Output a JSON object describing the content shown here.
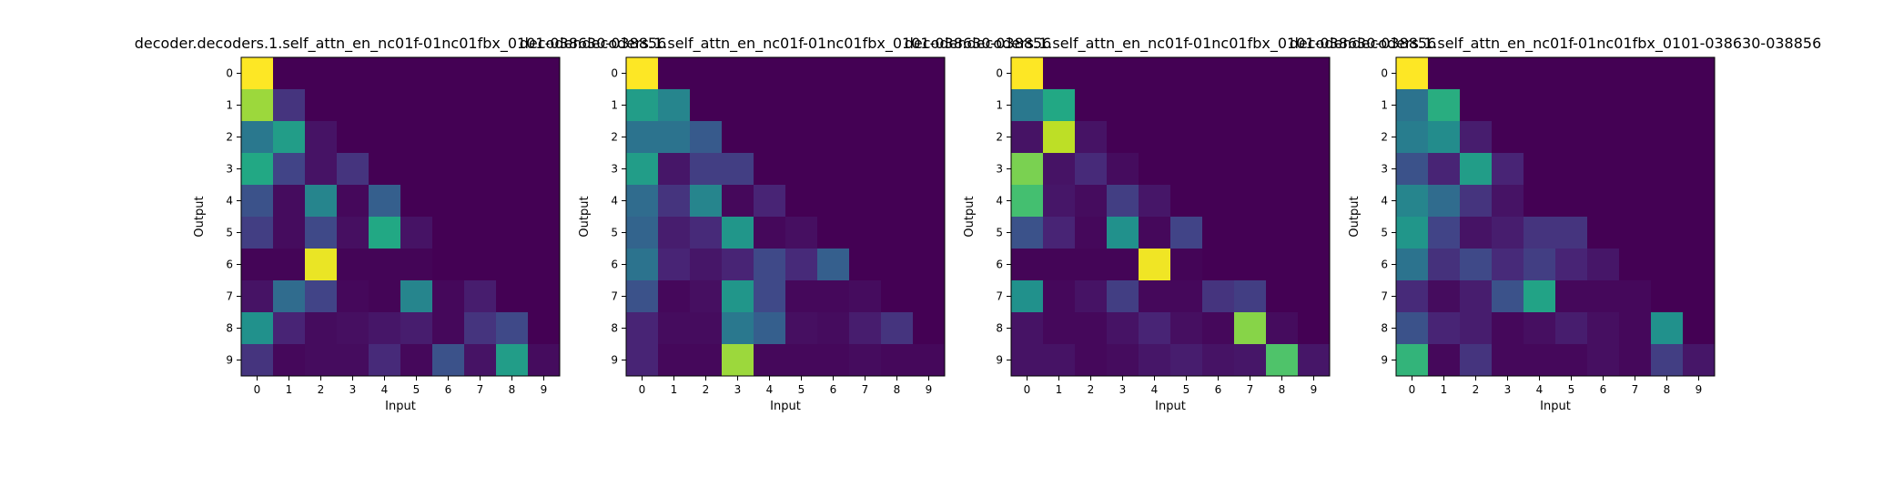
{
  "chart_data": [
    {
      "type": "heatmap",
      "title": "decoder.decoders.1.self_attn_en_nc01f-01nc01fbx_0101-038630-038856",
      "xlabel": "Input",
      "ylabel": "Output",
      "x_ticks": [
        "0",
        "1",
        "2",
        "3",
        "4",
        "5",
        "6",
        "7",
        "8",
        "9"
      ],
      "y_ticks": [
        "0",
        "1",
        "2",
        "3",
        "4",
        "5",
        "6",
        "7",
        "8",
        "9"
      ],
      "colormap": "viridis",
      "value_range": [
        0,
        1
      ],
      "values": [
        [
          1.0,
          0.0,
          0.0,
          0.0,
          0.0,
          0.0,
          0.0,
          0.0,
          0.0,
          0.0
        ],
        [
          0.85,
          0.15,
          0.0,
          0.0,
          0.0,
          0.0,
          0.0,
          0.0,
          0.0,
          0.0
        ],
        [
          0.4,
          0.55,
          0.05,
          0.0,
          0.0,
          0.0,
          0.0,
          0.0,
          0.0,
          0.0
        ],
        [
          0.6,
          0.2,
          0.05,
          0.15,
          0.0,
          0.0,
          0.0,
          0.0,
          0.0,
          0.0
        ],
        [
          0.25,
          0.03,
          0.45,
          0.02,
          0.3,
          0.0,
          0.0,
          0.0,
          0.0,
          0.0
        ],
        [
          0.18,
          0.03,
          0.22,
          0.04,
          0.6,
          0.05,
          0.0,
          0.0,
          0.0,
          0.0
        ],
        [
          0.01,
          0.01,
          0.97,
          0.01,
          0.01,
          0.01,
          0.0,
          0.0,
          0.0,
          0.0
        ],
        [
          0.05,
          0.35,
          0.2,
          0.02,
          0.01,
          0.45,
          0.02,
          0.08,
          0.0,
          0.0
        ],
        [
          0.5,
          0.1,
          0.03,
          0.04,
          0.06,
          0.08,
          0.02,
          0.15,
          0.22,
          0.0
        ],
        [
          0.15,
          0.02,
          0.03,
          0.03,
          0.12,
          0.02,
          0.25,
          0.05,
          0.55,
          0.03
        ]
      ]
    },
    {
      "type": "heatmap",
      "title": "decoder.decoders.1.self_attn_en_nc01f-01nc01fbx_0101-038630-038856",
      "xlabel": "Input",
      "ylabel": "Output",
      "x_ticks": [
        "0",
        "1",
        "2",
        "3",
        "4",
        "5",
        "6",
        "7",
        "8",
        "9"
      ],
      "y_ticks": [
        "0",
        "1",
        "2",
        "3",
        "4",
        "5",
        "6",
        "7",
        "8",
        "9"
      ],
      "colormap": "viridis",
      "value_range": [
        0,
        1
      ],
      "values": [
        [
          1.0,
          0.0,
          0.0,
          0.0,
          0.0,
          0.0,
          0.0,
          0.0,
          0.0,
          0.0
        ],
        [
          0.55,
          0.45,
          0.0,
          0.0,
          0.0,
          0.0,
          0.0,
          0.0,
          0.0,
          0.0
        ],
        [
          0.38,
          0.38,
          0.28,
          0.0,
          0.0,
          0.0,
          0.0,
          0.0,
          0.0,
          0.0
        ],
        [
          0.55,
          0.06,
          0.18,
          0.18,
          0.0,
          0.0,
          0.0,
          0.0,
          0.0,
          0.0
        ],
        [
          0.35,
          0.15,
          0.45,
          0.02,
          0.1,
          0.0,
          0.0,
          0.0,
          0.0,
          0.0
        ],
        [
          0.32,
          0.08,
          0.12,
          0.52,
          0.02,
          0.04,
          0.0,
          0.0,
          0.0,
          0.0
        ],
        [
          0.38,
          0.1,
          0.06,
          0.1,
          0.22,
          0.12,
          0.3,
          0.0,
          0.0,
          0.0
        ],
        [
          0.25,
          0.02,
          0.04,
          0.52,
          0.22,
          0.02,
          0.02,
          0.03,
          0.0,
          0.0
        ],
        [
          0.1,
          0.03,
          0.03,
          0.4,
          0.3,
          0.04,
          0.03,
          0.08,
          0.15,
          0.0
        ],
        [
          0.1,
          0.02,
          0.02,
          0.85,
          0.02,
          0.02,
          0.02,
          0.03,
          0.02,
          0.02
        ]
      ]
    },
    {
      "type": "heatmap",
      "title": "decoder.decoders.1.self_attn_en_nc01f-01nc01fbx_0101-038630-038856",
      "xlabel": "Input",
      "ylabel": "Output",
      "x_ticks": [
        "0",
        "1",
        "2",
        "3",
        "4",
        "5",
        "6",
        "7",
        "8",
        "9"
      ],
      "y_ticks": [
        "0",
        "1",
        "2",
        "3",
        "4",
        "5",
        "6",
        "7",
        "8",
        "9"
      ],
      "colormap": "viridis",
      "value_range": [
        0,
        1
      ],
      "values": [
        [
          1.0,
          0.0,
          0.0,
          0.0,
          0.0,
          0.0,
          0.0,
          0.0,
          0.0,
          0.0
        ],
        [
          0.4,
          0.6,
          0.0,
          0.0,
          0.0,
          0.0,
          0.0,
          0.0,
          0.0,
          0.0
        ],
        [
          0.05,
          0.9,
          0.05,
          0.0,
          0.0,
          0.0,
          0.0,
          0.0,
          0.0,
          0.0
        ],
        [
          0.8,
          0.05,
          0.12,
          0.03,
          0.0,
          0.0,
          0.0,
          0.0,
          0.0,
          0.0
        ],
        [
          0.7,
          0.06,
          0.03,
          0.18,
          0.06,
          0.0,
          0.0,
          0.0,
          0.0,
          0.0
        ],
        [
          0.25,
          0.1,
          0.02,
          0.5,
          0.02,
          0.2,
          0.0,
          0.0,
          0.0,
          0.0
        ],
        [
          0.01,
          0.01,
          0.01,
          0.01,
          0.98,
          0.01,
          0.0,
          0.0,
          0.0,
          0.0
        ],
        [
          0.5,
          0.02,
          0.05,
          0.18,
          0.02,
          0.02,
          0.15,
          0.18,
          0.0,
          0.0
        ],
        [
          0.05,
          0.02,
          0.02,
          0.05,
          0.1,
          0.04,
          0.02,
          0.82,
          0.03,
          0.0
        ],
        [
          0.05,
          0.05,
          0.02,
          0.03,
          0.06,
          0.08,
          0.05,
          0.06,
          0.72,
          0.06
        ]
      ]
    },
    {
      "type": "heatmap",
      "title": "decoder.decoders.1.self_attn_en_nc01f-01nc01fbx_0101-038630-038856",
      "xlabel": "Input",
      "ylabel": "Output",
      "x_ticks": [
        "0",
        "1",
        "2",
        "3",
        "4",
        "5",
        "6",
        "7",
        "8",
        "9"
      ],
      "y_ticks": [
        "0",
        "1",
        "2",
        "3",
        "4",
        "5",
        "6",
        "7",
        "8",
        "9"
      ],
      "colormap": "viridis",
      "value_range": [
        0,
        1
      ],
      "values": [
        [
          1.0,
          0.0,
          0.0,
          0.0,
          0.0,
          0.0,
          0.0,
          0.0,
          0.0,
          0.0
        ],
        [
          0.38,
          0.62,
          0.0,
          0.0,
          0.0,
          0.0,
          0.0,
          0.0,
          0.0,
          0.0
        ],
        [
          0.42,
          0.48,
          0.08,
          0.0,
          0.0,
          0.0,
          0.0,
          0.0,
          0.0,
          0.0
        ],
        [
          0.25,
          0.1,
          0.55,
          0.1,
          0.0,
          0.0,
          0.0,
          0.0,
          0.0,
          0.0
        ],
        [
          0.45,
          0.35,
          0.15,
          0.05,
          0.0,
          0.0,
          0.0,
          0.0,
          0.0,
          0.0
        ],
        [
          0.52,
          0.2,
          0.05,
          0.08,
          0.15,
          0.15,
          0.0,
          0.0,
          0.0,
          0.0
        ],
        [
          0.38,
          0.14,
          0.22,
          0.12,
          0.18,
          0.1,
          0.06,
          0.0,
          0.0,
          0.0
        ],
        [
          0.12,
          0.03,
          0.08,
          0.25,
          0.58,
          0.02,
          0.02,
          0.02,
          0.0,
          0.0
        ],
        [
          0.25,
          0.1,
          0.08,
          0.02,
          0.04,
          0.08,
          0.04,
          0.02,
          0.5,
          0.0
        ],
        [
          0.65,
          0.02,
          0.15,
          0.02,
          0.02,
          0.02,
          0.04,
          0.02,
          0.18,
          0.06
        ]
      ]
    }
  ]
}
